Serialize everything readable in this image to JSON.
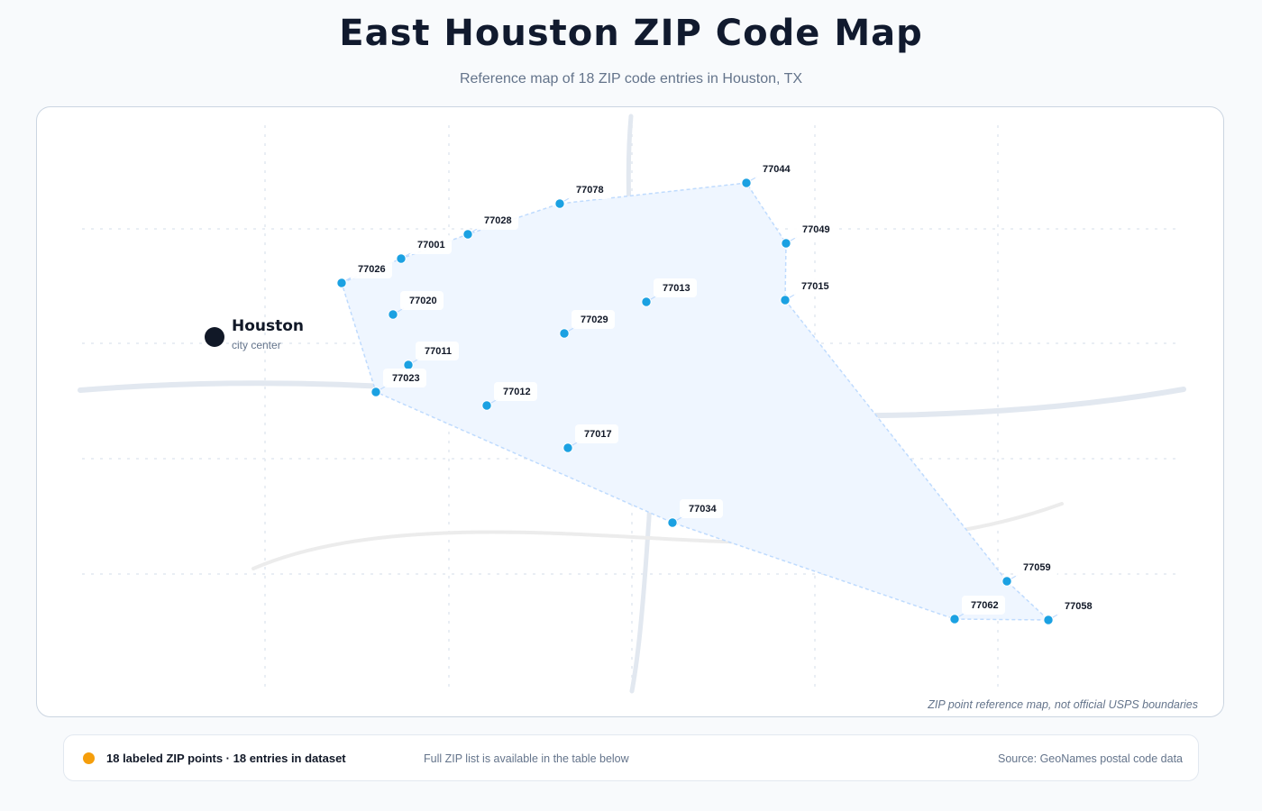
{
  "header": {
    "title": "East Houston ZIP Code Map",
    "subtitle": "Reference map of 18 ZIP code entries in Houston, TX"
  },
  "map": {
    "disclaimer": "ZIP point reference map, not official USPS boundaries",
    "city": {
      "name": "Houston",
      "sublabel": "city center"
    },
    "colors": {
      "point": "#1ba1e2",
      "area_fill": "#eff6ff",
      "area_stroke": "#bfdbfe",
      "road": "#e2e8f0",
      "city_marker": "#111827"
    },
    "zip_points": [
      {
        "zip": "77078"
      },
      {
        "zip": "77044"
      },
      {
        "zip": "77028"
      },
      {
        "zip": "77049"
      },
      {
        "zip": "77001"
      },
      {
        "zip": "77026"
      },
      {
        "zip": "77013"
      },
      {
        "zip": "77015"
      },
      {
        "zip": "77020"
      },
      {
        "zip": "77029"
      },
      {
        "zip": "77011"
      },
      {
        "zip": "77023"
      },
      {
        "zip": "77012"
      },
      {
        "zip": "77017"
      },
      {
        "zip": "77034"
      },
      {
        "zip": "77059"
      },
      {
        "zip": "77062"
      },
      {
        "zip": "77058"
      }
    ]
  },
  "footer": {
    "legend_color": "#f59e0b",
    "count_label": "18 labeled ZIP points · 18 entries in dataset",
    "note": "Full ZIP list is available in the table below",
    "source": "Source: GeoNames postal code data"
  }
}
